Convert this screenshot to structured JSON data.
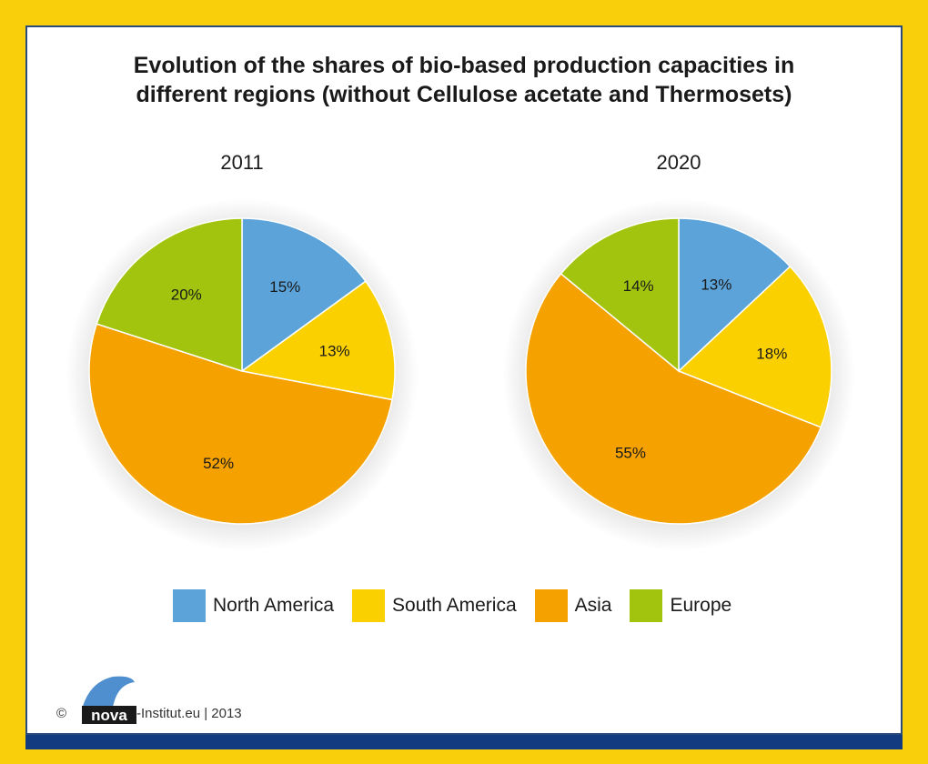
{
  "title_lines": [
    "Evolution of the shares of bio-based production capacities in",
    "different regions (without Cellulose acetate and Thermosets)"
  ],
  "colors": {
    "North America": "#5ba3d9",
    "South America": "#fbd000",
    "Asia": "#f5a100",
    "Europe": "#a3c40e",
    "background": "#f9cf0c",
    "bar": "#123b80"
  },
  "chart_data": [
    {
      "type": "pie",
      "title": "2011",
      "categories": [
        "North America",
        "South America",
        "Asia",
        "Europe"
      ],
      "values": [
        15,
        13,
        52,
        20
      ],
      "labels": [
        "15%",
        "13%",
        "52%",
        "20%"
      ]
    },
    {
      "type": "pie",
      "title": "2020",
      "categories": [
        "North America",
        "South America",
        "Asia",
        "Europe"
      ],
      "values": [
        13,
        18,
        55,
        14
      ],
      "labels": [
        "13%",
        "18%",
        "55%",
        "14%"
      ]
    }
  ],
  "legend": [
    "North America",
    "South America",
    "Asia",
    "Europe"
  ],
  "footer": {
    "copyright": "©",
    "logo_text": "nova",
    "text": "-Institut.eu | 2013"
  }
}
